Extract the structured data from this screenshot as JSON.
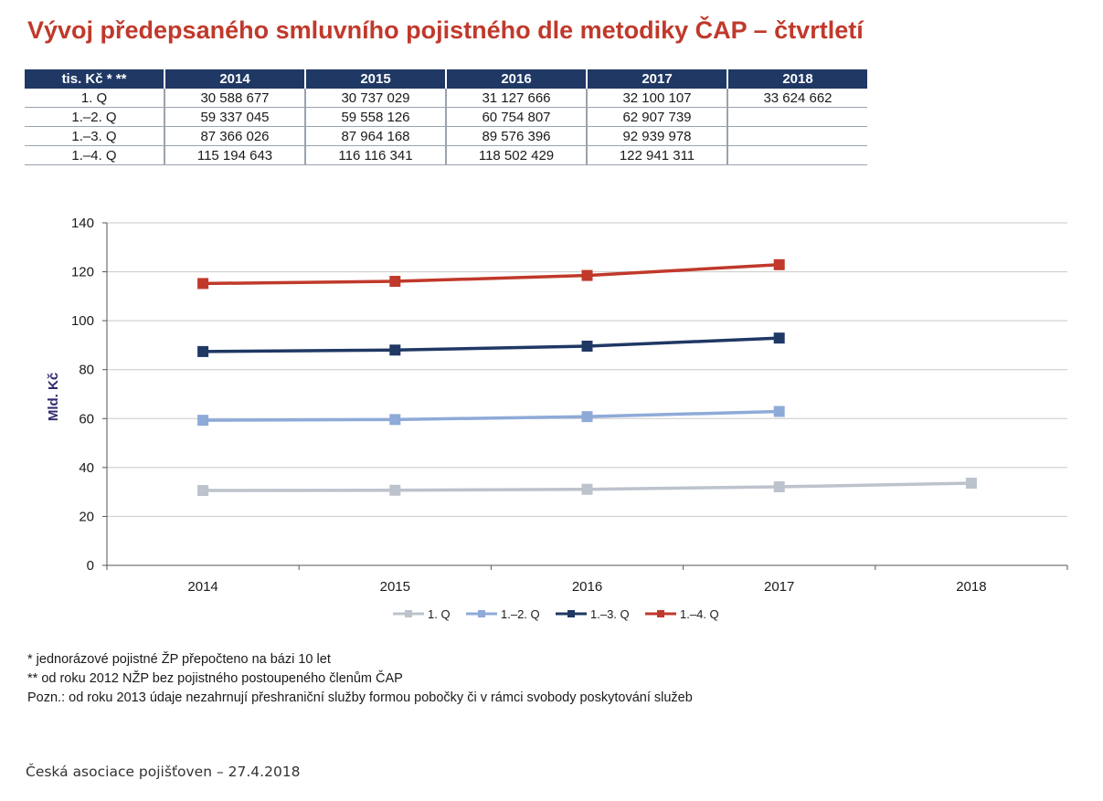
{
  "title": "Vývoj předepsaného smluvního pojistného dle metodiky ČAP – čtvrtletí",
  "table": {
    "header": [
      "tis. Kč * **",
      "2014",
      "2015",
      "2016",
      "2017",
      "2018"
    ],
    "rows": [
      [
        "1. Q",
        "30 588 677",
        "30 737 029",
        "31 127 666",
        "32 100 107",
        "33 624 662"
      ],
      [
        "1.–2. Q",
        "59 337 045",
        "59 558 126",
        "60 754 807",
        "62 907 739",
        ""
      ],
      [
        "1.–3. Q",
        "87 366 026",
        "87 964 168",
        "89 576 396",
        "92 939 978",
        ""
      ],
      [
        "1.–4. Q",
        "115 194 643",
        "116 116 341",
        "118 502 429",
        "122 941 311",
        ""
      ]
    ]
  },
  "colors": {
    "title": "#c0392b",
    "table_header_bg": "#1f3864",
    "ylabel": "#2e2a6e"
  },
  "chart_data": {
    "type": "line",
    "categories": [
      "2014",
      "2015",
      "2016",
      "2017",
      "2018"
    ],
    "ylabel": "Mld. Kč",
    "ylim": [
      0,
      140
    ],
    "yticks": [
      0,
      20,
      40,
      60,
      80,
      100,
      120,
      140
    ],
    "grid": true,
    "legend_position": "bottom",
    "series": [
      {
        "name": "1. Q",
        "color": "#bcc3cc",
        "values": [
          30.6,
          30.7,
          31.1,
          32.1,
          33.6
        ]
      },
      {
        "name": "1.–2. Q",
        "color": "#8eaad8",
        "values": [
          59.3,
          59.6,
          60.8,
          62.9,
          null
        ]
      },
      {
        "name": "1.–3. Q",
        "color": "#1f3864",
        "values": [
          87.4,
          88.0,
          89.6,
          92.9,
          null
        ]
      },
      {
        "name": "1.–4. Q",
        "color": "#c0392b",
        "values": [
          115.2,
          116.1,
          118.5,
          122.9,
          null
        ]
      }
    ]
  },
  "notes": [
    "* jednorázové pojistné ŽP přepočteno na bázi 10 let",
    "** od roku 2012 NŽP bez pojistného postoupeného členům ČAP",
    "Pozn.: od roku 2013 údaje nezahrnují přeshraniční služby formou pobočky či v rámci svobody poskytování služeb"
  ],
  "footer": "Česká asociace pojišťoven – 27.4.2018"
}
